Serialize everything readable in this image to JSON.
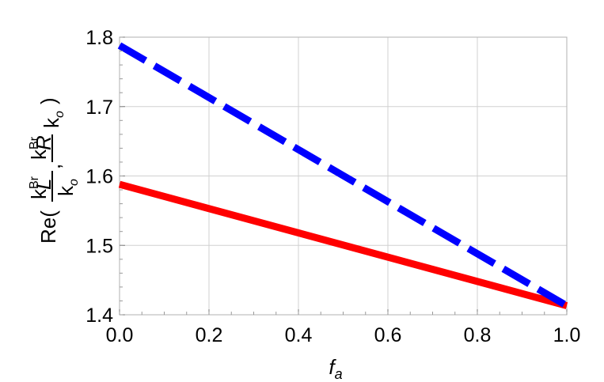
{
  "chart_data": {
    "type": "line",
    "title": "",
    "xlabel": {
      "base": "f",
      "sub": "a"
    },
    "ylabel": {
      "prefix": "Re(",
      "num1": "k",
      "num1_sup": "Br",
      "num1_sub": "L",
      "den": "k",
      "den_sub": "o",
      "sep": ",",
      "num2": "k",
      "num2_sup": "Br",
      "num2_sub": "R",
      "suffix": ")"
    },
    "xlim": [
      0.0,
      1.0
    ],
    "ylim": [
      1.4,
      1.8
    ],
    "xticks": [
      "0.0",
      "0.2",
      "0.4",
      "0.6",
      "0.8",
      "1.0"
    ],
    "yticks": [
      "1.4",
      "1.5",
      "1.6",
      "1.7",
      "1.8"
    ],
    "grid": true,
    "series": [
      {
        "color": "#0000ff",
        "style": "dashed",
        "x": [
          0.0,
          1.0
        ],
        "y": [
          1.788,
          1.413
        ]
      },
      {
        "color": "#ff0000",
        "style": "solid",
        "x": [
          0.0,
          1.0
        ],
        "y": [
          1.588,
          1.413
        ]
      }
    ]
  }
}
